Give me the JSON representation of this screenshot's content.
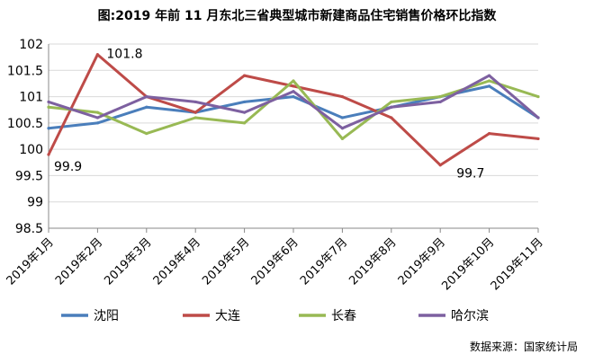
{
  "chart_data": {
    "type": "line",
    "title": "图:2019 年前 11 月东北三省典型城市新建商品住宅销售价格环比指数",
    "categories": [
      "2019年1月",
      "2019年2月",
      "2019年3月",
      "2019年4月",
      "2019年5月",
      "2019年6月",
      "2019年7月",
      "2019年8月",
      "2019年9月",
      "2019年10月",
      "2019年11月"
    ],
    "ylim": [
      98.5,
      102
    ],
    "yticks": [
      "98.5",
      "99",
      "99.5",
      "100",
      "100.5",
      "101",
      "101.5",
      "102"
    ],
    "grid": true,
    "legend_position": "bottom",
    "series": [
      {
        "name": "沈阳",
        "color": "#4a7ebb",
        "values": [
          100.4,
          100.5,
          100.8,
          100.7,
          100.9,
          101.0,
          100.6,
          100.8,
          101.0,
          101.2,
          100.6
        ]
      },
      {
        "name": "大连",
        "color": "#be4b48",
        "values": [
          99.9,
          101.8,
          101.0,
          100.7,
          101.4,
          101.2,
          101.0,
          100.6,
          99.7,
          100.3,
          100.2
        ]
      },
      {
        "name": "长春",
        "color": "#98b954",
        "values": [
          100.8,
          100.7,
          100.3,
          100.6,
          100.5,
          101.3,
          100.2,
          100.9,
          101.0,
          101.3,
          101.0
        ]
      },
      {
        "name": "哈尔滨",
        "color": "#7d60a0",
        "values": [
          100.9,
          100.6,
          101.0,
          100.9,
          100.7,
          101.1,
          100.4,
          100.8,
          100.9,
          101.4,
          100.6
        ]
      }
    ],
    "annotations": [
      {
        "text": "101.8",
        "series": 1,
        "index": 1
      },
      {
        "text": "99.9",
        "series": 1,
        "index": 0
      },
      {
        "text": "99.7",
        "series": 1,
        "index": 8
      }
    ],
    "source_note": "数据来源：国家统计局"
  }
}
